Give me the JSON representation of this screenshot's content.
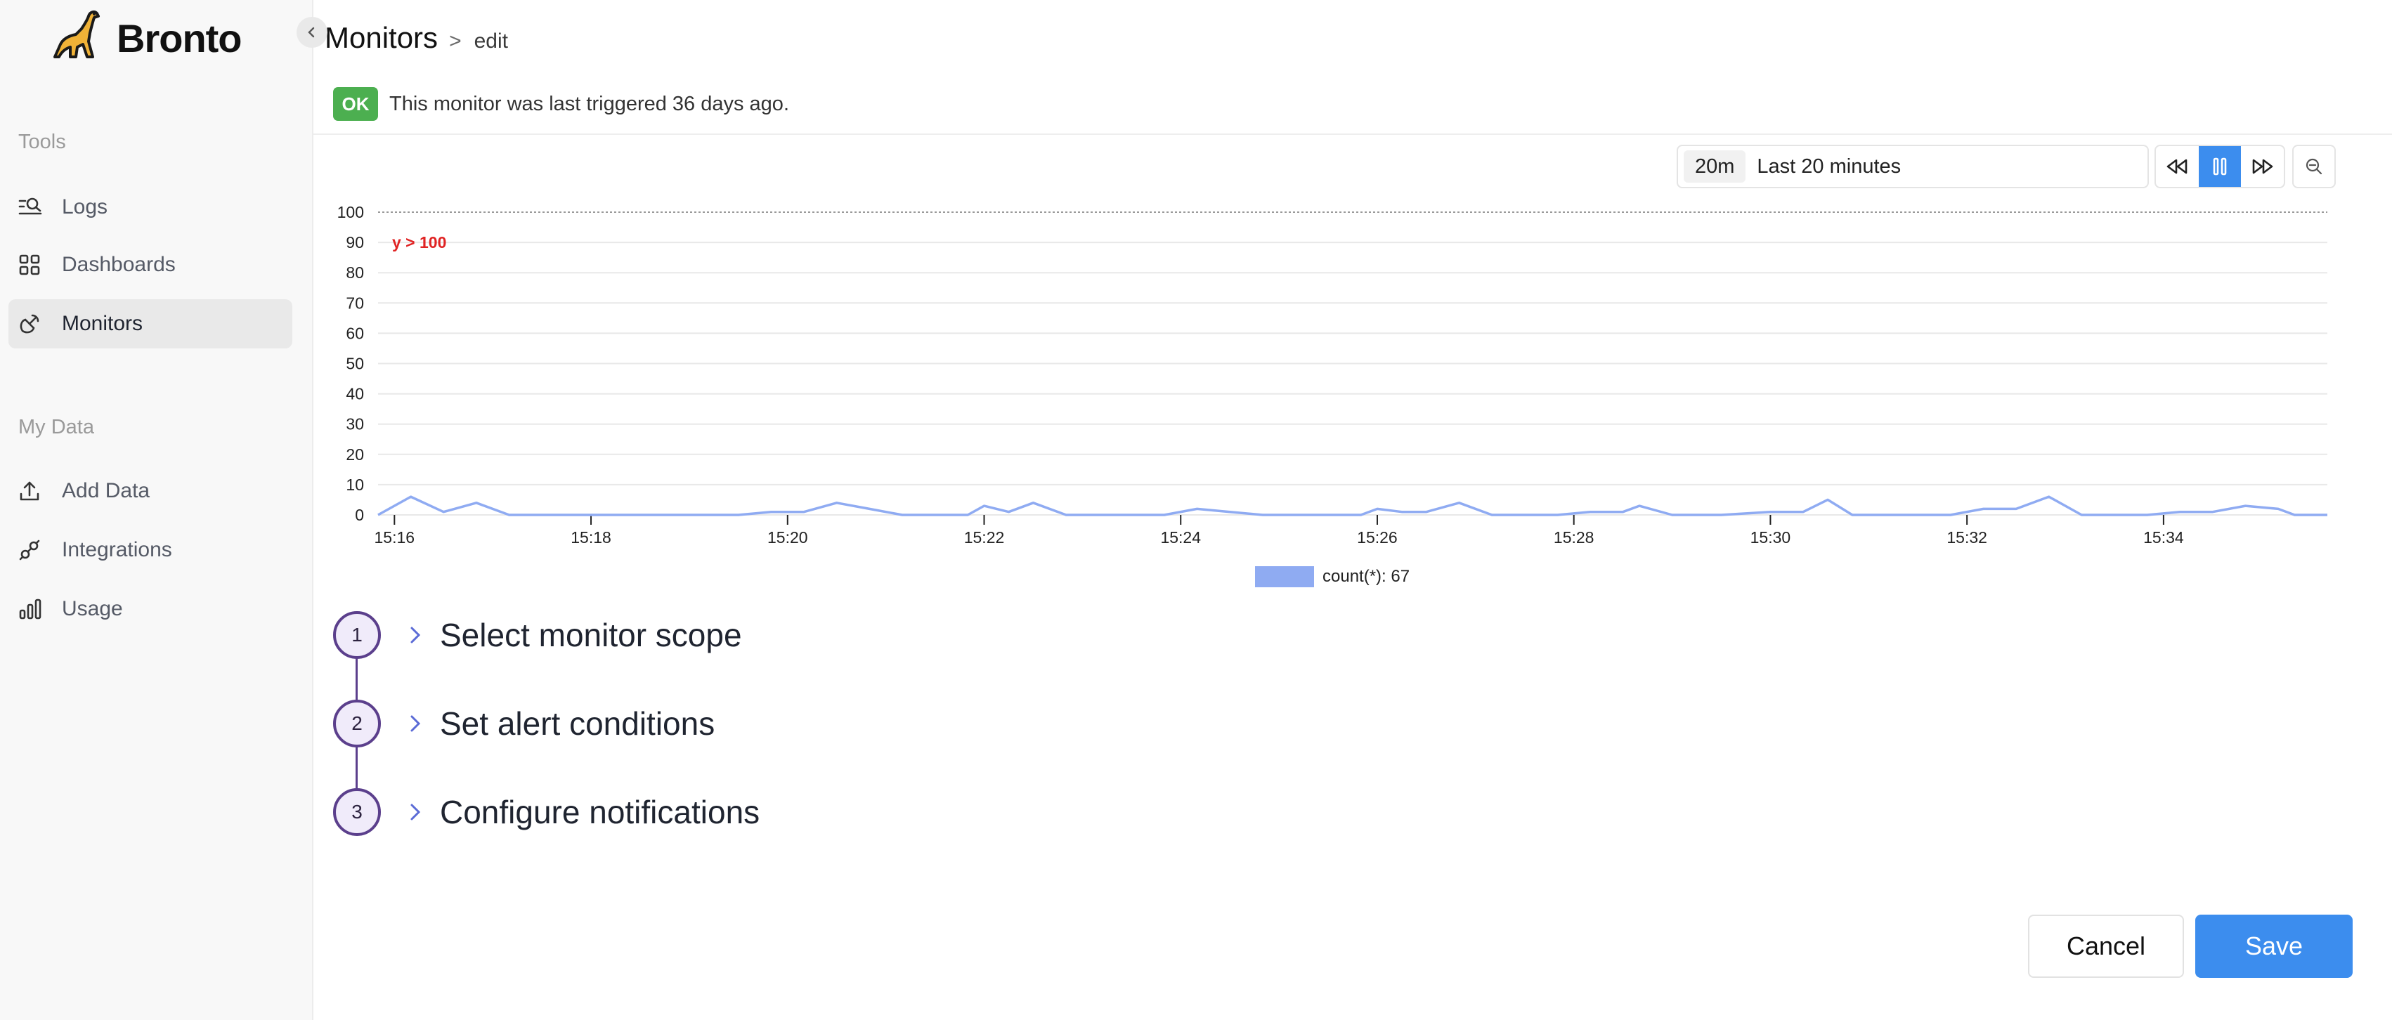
{
  "app": {
    "name": "Bronto"
  },
  "sidebar": {
    "sections": [
      {
        "label": "Tools",
        "items": [
          {
            "label": "Logs",
            "icon": "logs-search-icon",
            "active": false
          },
          {
            "label": "Dashboards",
            "icon": "dashboard-grid-icon",
            "active": false
          },
          {
            "label": "Monitors",
            "icon": "monitor-satellite-icon",
            "active": true
          }
        ]
      },
      {
        "label": "My Data",
        "items": [
          {
            "label": "Add Data",
            "icon": "upload-icon",
            "active": false
          },
          {
            "label": "Integrations",
            "icon": "plug-icon",
            "active": false
          },
          {
            "label": "Usage",
            "icon": "bar-chart-icon",
            "active": false
          }
        ]
      }
    ]
  },
  "header": {
    "title": "Monitors",
    "separator": ">",
    "subtitle": "edit"
  },
  "status": {
    "badge": "OK",
    "badge_color": "#4caf50",
    "message": "This monitor was last triggered 36 days ago."
  },
  "time_range": {
    "short": "20m",
    "label": "Last 20 minutes",
    "paused": true
  },
  "chart_data": {
    "type": "line",
    "threshold": {
      "value": 100,
      "label": "y > 100",
      "color": "#e02424"
    },
    "y_ticks": [
      "0",
      "10",
      "20",
      "30",
      "40",
      "50",
      "60",
      "70",
      "80",
      "90",
      "100"
    ],
    "ylim": [
      0,
      100
    ],
    "x_ticks": [
      "15:16",
      "15:18",
      "15:20",
      "15:22",
      "15:24",
      "15:26",
      "15:28",
      "15:30",
      "15:32",
      "15:34"
    ],
    "xlim": [
      "15:15:50",
      "15:35:40"
    ],
    "grid": true,
    "series": [
      {
        "name": "count(*): 67",
        "color": "#8fabf2",
        "points": [
          [
            "15:15:50",
            0
          ],
          [
            "15:16:10",
            6
          ],
          [
            "15:16:30",
            1
          ],
          [
            "15:16:50",
            4
          ],
          [
            "15:17:10",
            0
          ],
          [
            "15:17:30",
            0
          ],
          [
            "15:18:00",
            0
          ],
          [
            "15:18:30",
            0
          ],
          [
            "15:19:00",
            0
          ],
          [
            "15:19:30",
            0
          ],
          [
            "15:19:50",
            1
          ],
          [
            "15:20:10",
            1
          ],
          [
            "15:20:30",
            4
          ],
          [
            "15:20:50",
            2
          ],
          [
            "15:21:10",
            0
          ],
          [
            "15:21:30",
            0
          ],
          [
            "15:21:50",
            0
          ],
          [
            "15:22:00",
            3
          ],
          [
            "15:22:15",
            1
          ],
          [
            "15:22:30",
            4
          ],
          [
            "15:22:50",
            0
          ],
          [
            "15:23:10",
            0
          ],
          [
            "15:23:50",
            0
          ],
          [
            "15:24:10",
            2
          ],
          [
            "15:24:30",
            1
          ],
          [
            "15:24:50",
            0
          ],
          [
            "15:25:10",
            0
          ],
          [
            "15:25:50",
            0
          ],
          [
            "15:26:00",
            2
          ],
          [
            "15:26:15",
            1
          ],
          [
            "15:26:30",
            1
          ],
          [
            "15:26:50",
            4
          ],
          [
            "15:27:10",
            0
          ],
          [
            "15:27:30",
            0
          ],
          [
            "15:27:50",
            0
          ],
          [
            "15:28:10",
            1
          ],
          [
            "15:28:30",
            1
          ],
          [
            "15:28:40",
            3
          ],
          [
            "15:29:00",
            0
          ],
          [
            "15:29:30",
            0
          ],
          [
            "15:30:00",
            1
          ],
          [
            "15:30:20",
            1
          ],
          [
            "15:30:35",
            5
          ],
          [
            "15:30:50",
            0
          ],
          [
            "15:31:10",
            0
          ],
          [
            "15:31:50",
            0
          ],
          [
            "15:32:10",
            2
          ],
          [
            "15:32:30",
            2
          ],
          [
            "15:32:50",
            6
          ],
          [
            "15:33:10",
            0
          ],
          [
            "15:33:30",
            0
          ],
          [
            "15:33:50",
            0
          ],
          [
            "15:34:10",
            1
          ],
          [
            "15:34:30",
            1
          ],
          [
            "15:34:50",
            3
          ],
          [
            "15:35:10",
            2
          ],
          [
            "15:35:20",
            0
          ],
          [
            "15:35:40",
            0
          ]
        ]
      }
    ]
  },
  "steps": [
    {
      "number": "1",
      "label": "Select monitor scope"
    },
    {
      "number": "2",
      "label": "Set alert conditions"
    },
    {
      "number": "3",
      "label": "Configure notifications"
    }
  ],
  "actions": {
    "cancel_label": "Cancel",
    "save_label": "Save"
  }
}
